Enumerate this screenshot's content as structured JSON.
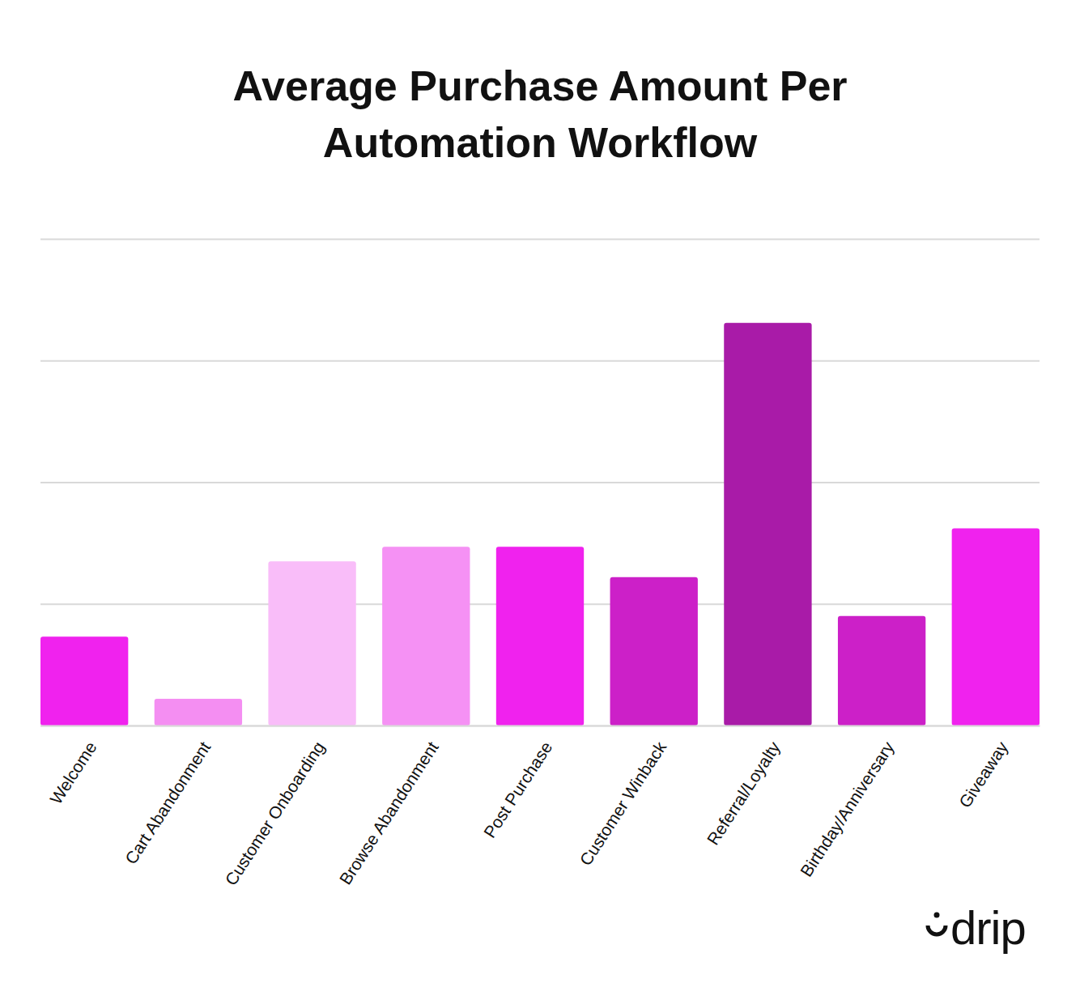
{
  "chart_data": {
    "type": "bar",
    "title": "Average Purchase Amount Per Automation Workflow",
    "categories": [
      "Welcome",
      "Cart Abandonment",
      "Customer Onboarding",
      "Browse Abandonment",
      "Post Purchase",
      "Customer Winback",
      "Referral/Loyalty",
      "Birthday/Anniversary",
      "Giveaway"
    ],
    "values": [
      0.73,
      0.22,
      1.35,
      1.47,
      1.47,
      1.22,
      3.31,
      0.9,
      1.62
    ],
    "colors": [
      "#f022ee",
      "#f48ef2",
      "#f9bdf9",
      "#f591f4",
      "#f022ee",
      "#cc20c8",
      "#a91ba8",
      "#cc20c8",
      "#f022ee"
    ],
    "ylim": [
      0,
      4
    ],
    "yticks": [
      0,
      1,
      2,
      3,
      4
    ],
    "grid": true,
    "tick_labels": "x",
    "annotations": [
      "drip"
    ]
  }
}
